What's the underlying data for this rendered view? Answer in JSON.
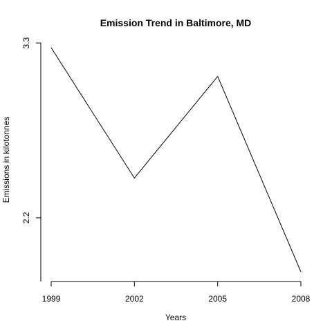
{
  "chart_data": {
    "type": "line",
    "title": "Emission Trend in Baltimore, MD",
    "xlabel": "Years",
    "ylabel": "Emissions in kilotonnes",
    "x": [
      1999,
      2002,
      2005,
      2008
    ],
    "x_tick_labels": [
      "1999",
      "2002",
      "2005",
      "2008"
    ],
    "series": [
      {
        "values": [
          3.27,
          2.45,
          3.09,
          1.86
        ]
      }
    ],
    "y_ticks": [
      3.3,
      2.2
    ],
    "y_tick_labels": [
      "3.3",
      "2.2"
    ],
    "xlim": [
      1999,
      2008
    ],
    "ylim": [
      1.86,
      3.27
    ],
    "grid": false,
    "line_color": "#000000"
  }
}
